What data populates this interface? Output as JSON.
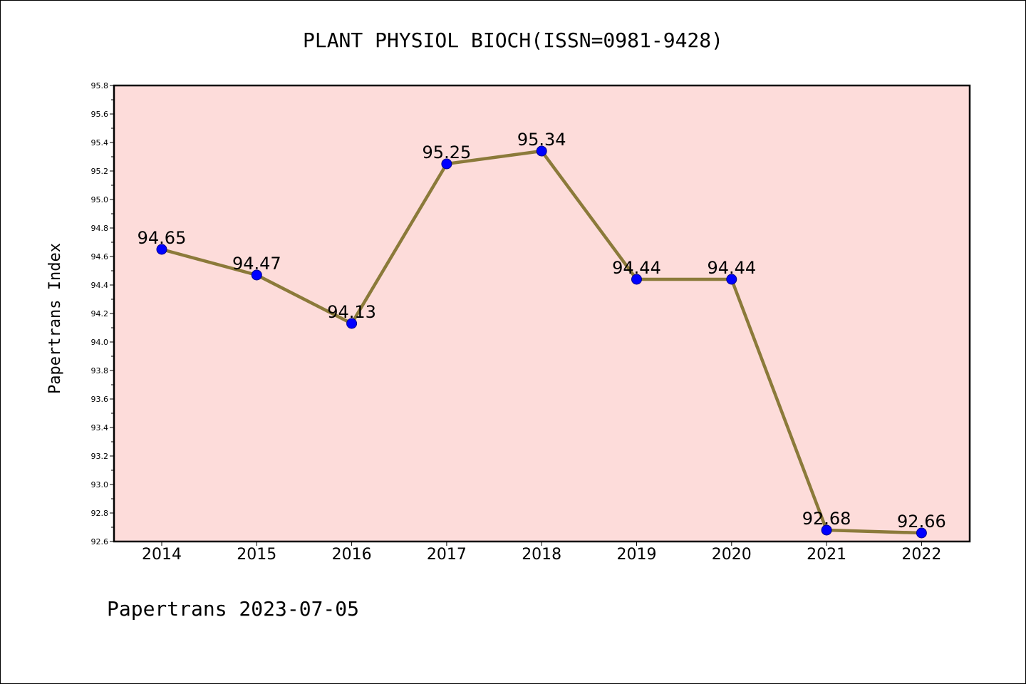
{
  "chart_data": {
    "type": "line",
    "title": "PLANT PHYSIOL BIOCH(ISSN=0981-9428)",
    "xlabel": "",
    "ylabel": "Papertrans Index",
    "footer": "Papertrans 2023-07-05",
    "categories": [
      "2014",
      "2015",
      "2016",
      "2017",
      "2018",
      "2019",
      "2020",
      "2021",
      "2022"
    ],
    "series": [
      {
        "values": [
          94.65,
          94.47,
          94.13,
          95.25,
          95.34,
          94.44,
          94.44,
          92.68,
          92.66
        ],
        "data_labels": [
          "94.65",
          "94.47",
          "94.13",
          "95.25",
          "95.34",
          "94.44",
          "94.44",
          "92.68",
          "92.66"
        ]
      }
    ],
    "ylim": [
      92.6,
      95.8
    ],
    "yticks": [
      "92.6",
      "92.8",
      "93.0",
      "93.2",
      "93.4",
      "93.6",
      "93.8",
      "94.0",
      "94.2",
      "94.4",
      "94.6",
      "94.8",
      "95.0",
      "95.2",
      "95.4",
      "95.6",
      "95.8"
    ],
    "grid": false,
    "legend": "none",
    "colors": {
      "plot_background": "#fddcda",
      "line": "#8b7a3a",
      "marker": "#0000ff",
      "marker_edge": "#00008b"
    }
  }
}
